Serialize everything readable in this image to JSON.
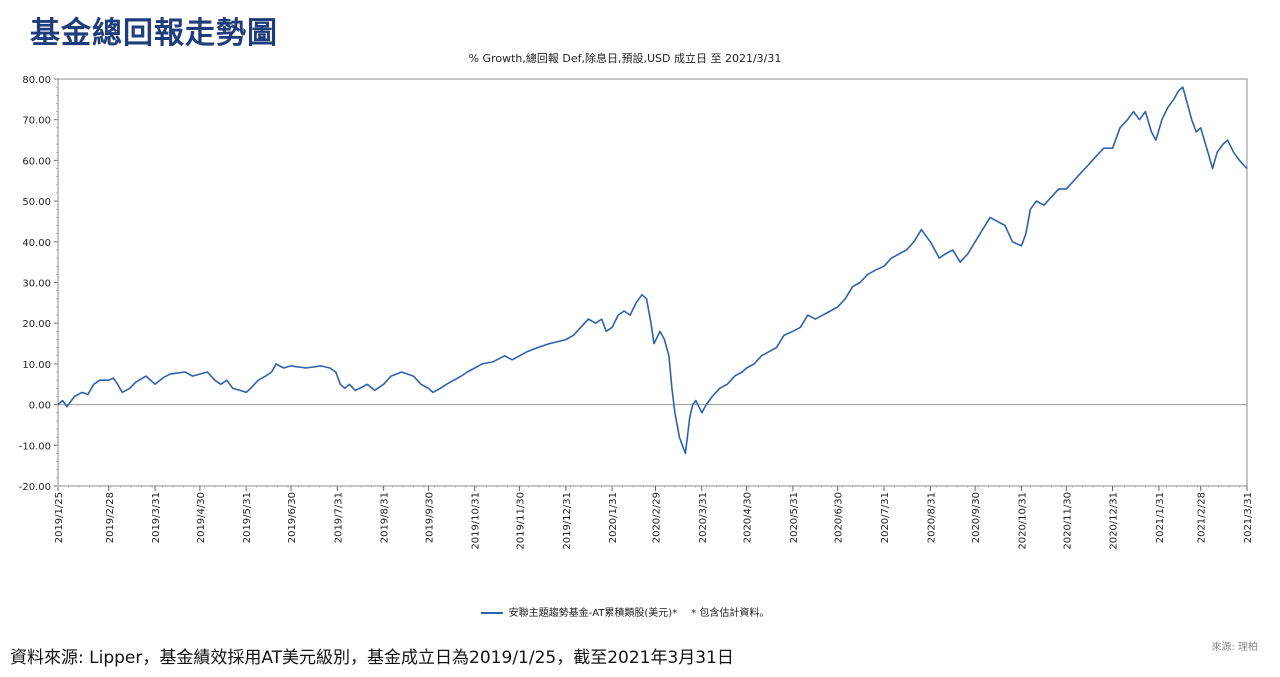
{
  "page": {
    "title": "基金總回報走勢圖",
    "source_note": "資料來源: Lipper，基金績效採用AT美元級別，基金成立日為2019/1/25，截至2021年3月31日",
    "credit": "來源: 理柏"
  },
  "colors": {
    "title": "#1f3d7a",
    "series": "#2e62ad",
    "zero_line": "#9a9a9a"
  },
  "chart_data": {
    "type": "line",
    "title": "",
    "subtitle": "% Growth,總回報 Def,除息日,預設,USD 成立日 至 2021/3/31",
    "xlabel": "",
    "ylabel": "",
    "ylim": [
      -20,
      80
    ],
    "yticks": [
      "80.00",
      "70.00",
      "60.00",
      "50.00",
      "40.00",
      "30.00",
      "20.00",
      "10.00",
      "0.00",
      "-10.00",
      "-20.00"
    ],
    "x_range": [
      "2019-01-25",
      "2021-03-31"
    ],
    "xtick_labels": [
      "2019/1/25",
      "2019/2/28",
      "2019/3/31",
      "2019/4/30",
      "2019/5/31",
      "2019/6/30",
      "2019/7/31",
      "2019/8/31",
      "2019/9/30",
      "2019/10/31",
      "2019/11/30",
      "2019/12/31",
      "2020/1/31",
      "2020/2/29",
      "2020/3/31",
      "2020/4/30",
      "2020/5/31",
      "2020/6/30",
      "2020/7/31",
      "2020/8/31",
      "2020/9/30",
      "2020/10/31",
      "2020/11/30",
      "2020/12/31",
      "2021/1/31",
      "2021/2/28",
      "2021/3/31"
    ],
    "grid": false,
    "legend_position": "bottom",
    "legend": "安聯主題趨勢基金-AT累積類股(美元)*",
    "legend_note": "* 包含估計資料。",
    "series": [
      {
        "name": "安聯主題趨勢基金-AT累積類股(美元)*",
        "points": [
          [
            "2019-01-25",
            0
          ],
          [
            "2019-01-28",
            1
          ],
          [
            "2019-01-31",
            -0.5
          ],
          [
            "2019-02-05",
            2
          ],
          [
            "2019-02-10",
            3
          ],
          [
            "2019-02-14",
            2.5
          ],
          [
            "2019-02-18",
            5
          ],
          [
            "2019-02-22",
            6
          ],
          [
            "2019-02-28",
            6
          ],
          [
            "2019-03-03",
            6.5
          ],
          [
            "2019-03-06",
            5
          ],
          [
            "2019-03-09",
            3
          ],
          [
            "2019-03-14",
            4
          ],
          [
            "2019-03-18",
            5.5
          ],
          [
            "2019-03-25",
            7
          ],
          [
            "2019-03-31",
            5
          ],
          [
            "2019-04-05",
            6.5
          ],
          [
            "2019-04-10",
            7.5
          ],
          [
            "2019-04-20",
            8
          ],
          [
            "2019-04-25",
            7
          ],
          [
            "2019-04-30",
            7.5
          ],
          [
            "2019-05-05",
            8
          ],
          [
            "2019-05-10",
            6
          ],
          [
            "2019-05-14",
            5
          ],
          [
            "2019-05-18",
            6
          ],
          [
            "2019-05-22",
            4
          ],
          [
            "2019-05-27",
            3.5
          ],
          [
            "2019-05-31",
            3
          ],
          [
            "2019-06-03",
            4
          ],
          [
            "2019-06-08",
            6
          ],
          [
            "2019-06-13",
            7
          ],
          [
            "2019-06-17",
            8
          ],
          [
            "2019-06-20",
            10
          ],
          [
            "2019-06-25",
            9
          ],
          [
            "2019-06-30",
            9.5
          ],
          [
            "2019-07-10",
            9
          ],
          [
            "2019-07-20",
            9.5
          ],
          [
            "2019-07-26",
            9
          ],
          [
            "2019-07-30",
            8
          ],
          [
            "2019-08-02",
            5
          ],
          [
            "2019-08-05",
            4
          ],
          [
            "2019-08-08",
            5
          ],
          [
            "2019-08-12",
            3.5
          ],
          [
            "2019-08-15",
            4
          ],
          [
            "2019-08-20",
            5
          ],
          [
            "2019-08-25",
            3.5
          ],
          [
            "2019-08-31",
            5
          ],
          [
            "2019-09-05",
            7
          ],
          [
            "2019-09-12",
            8
          ],
          [
            "2019-09-20",
            7
          ],
          [
            "2019-09-25",
            5
          ],
          [
            "2019-09-30",
            4
          ],
          [
            "2019-10-03",
            3
          ],
          [
            "2019-10-08",
            4
          ],
          [
            "2019-10-12",
            5
          ],
          [
            "2019-10-17",
            6
          ],
          [
            "2019-10-22",
            7
          ],
          [
            "2019-10-26",
            8
          ],
          [
            "2019-10-31",
            9
          ],
          [
            "2019-11-05",
            10
          ],
          [
            "2019-11-12",
            10.5
          ],
          [
            "2019-11-20",
            12
          ],
          [
            "2019-11-25",
            11
          ],
          [
            "2019-11-30",
            12
          ],
          [
            "2019-12-05",
            13
          ],
          [
            "2019-12-12",
            14
          ],
          [
            "2019-12-20",
            15
          ],
          [
            "2019-12-26",
            15.5
          ],
          [
            "2019-12-31",
            16
          ],
          [
            "2020-01-05",
            17
          ],
          [
            "2020-01-10",
            19
          ],
          [
            "2020-01-15",
            21
          ],
          [
            "2020-01-20",
            20
          ],
          [
            "2020-01-24",
            21
          ],
          [
            "2020-01-27",
            18
          ],
          [
            "2020-01-31",
            19
          ],
          [
            "2020-02-04",
            22
          ],
          [
            "2020-02-08",
            23
          ],
          [
            "2020-02-12",
            22
          ],
          [
            "2020-02-16",
            25
          ],
          [
            "2020-02-20",
            27
          ],
          [
            "2020-02-23",
            26
          ],
          [
            "2020-02-26",
            20
          ],
          [
            "2020-02-28",
            15
          ],
          [
            "2020-03-03",
            18
          ],
          [
            "2020-03-06",
            16
          ],
          [
            "2020-03-09",
            12
          ],
          [
            "2020-03-11",
            4
          ],
          [
            "2020-03-13",
            -2
          ],
          [
            "2020-03-16",
            -8
          ],
          [
            "2020-03-18",
            -10
          ],
          [
            "2020-03-20",
            -12
          ],
          [
            "2020-03-23",
            -3
          ],
          [
            "2020-03-25",
            0
          ],
          [
            "2020-03-27",
            1
          ],
          [
            "2020-03-31",
            -2
          ],
          [
            "2020-04-03",
            0
          ],
          [
            "2020-04-07",
            2
          ],
          [
            "2020-04-12",
            4
          ],
          [
            "2020-04-17",
            5
          ],
          [
            "2020-04-22",
            7
          ],
          [
            "2020-04-27",
            8
          ],
          [
            "2020-04-30",
            9
          ],
          [
            "2020-05-05",
            10
          ],
          [
            "2020-05-10",
            12
          ],
          [
            "2020-05-15",
            13
          ],
          [
            "2020-05-20",
            14
          ],
          [
            "2020-05-25",
            17
          ],
          [
            "2020-05-31",
            18
          ],
          [
            "2020-06-05",
            19
          ],
          [
            "2020-06-10",
            22
          ],
          [
            "2020-06-15",
            21
          ],
          [
            "2020-06-20",
            22
          ],
          [
            "2020-06-25",
            23
          ],
          [
            "2020-06-30",
            24
          ],
          [
            "2020-07-05",
            26
          ],
          [
            "2020-07-10",
            29
          ],
          [
            "2020-07-15",
            30
          ],
          [
            "2020-07-20",
            32
          ],
          [
            "2020-07-25",
            33
          ],
          [
            "2020-07-31",
            34
          ],
          [
            "2020-08-05",
            36
          ],
          [
            "2020-08-10",
            37
          ],
          [
            "2020-08-15",
            38
          ],
          [
            "2020-08-20",
            40
          ],
          [
            "2020-08-25",
            43
          ],
          [
            "2020-08-31",
            40
          ],
          [
            "2020-09-03",
            38
          ],
          [
            "2020-09-06",
            36
          ],
          [
            "2020-09-10",
            37
          ],
          [
            "2020-09-15",
            38
          ],
          [
            "2020-09-20",
            35
          ],
          [
            "2020-09-25",
            37
          ],
          [
            "2020-09-30",
            40
          ],
          [
            "2020-10-05",
            43
          ],
          [
            "2020-10-10",
            46
          ],
          [
            "2020-10-15",
            45
          ],
          [
            "2020-10-20",
            44
          ],
          [
            "2020-10-25",
            40
          ],
          [
            "2020-10-31",
            39
          ],
          [
            "2020-11-03",
            42
          ],
          [
            "2020-11-06",
            48
          ],
          [
            "2020-11-10",
            50
          ],
          [
            "2020-11-15",
            49
          ],
          [
            "2020-11-20",
            51
          ],
          [
            "2020-11-25",
            53
          ],
          [
            "2020-11-30",
            53
          ],
          [
            "2020-12-05",
            55
          ],
          [
            "2020-12-10",
            57
          ],
          [
            "2020-12-15",
            59
          ],
          [
            "2020-12-20",
            61
          ],
          [
            "2020-12-25",
            63
          ],
          [
            "2020-12-31",
            63
          ],
          [
            "2021-01-05",
            68
          ],
          [
            "2021-01-10",
            70
          ],
          [
            "2021-01-14",
            72
          ],
          [
            "2021-01-18",
            70
          ],
          [
            "2021-01-22",
            72
          ],
          [
            "2021-01-26",
            67
          ],
          [
            "2021-01-29",
            65
          ],
          [
            "2021-02-02",
            70
          ],
          [
            "2021-02-06",
            73
          ],
          [
            "2021-02-10",
            75
          ],
          [
            "2021-02-13",
            77
          ],
          [
            "2021-02-16",
            78
          ],
          [
            "2021-02-19",
            74
          ],
          [
            "2021-02-22",
            70
          ],
          [
            "2021-02-25",
            67
          ],
          [
            "2021-02-28",
            68
          ],
          [
            "2021-03-04",
            63
          ],
          [
            "2021-03-08",
            58
          ],
          [
            "2021-03-11",
            62
          ],
          [
            "2021-03-15",
            64
          ],
          [
            "2021-03-18",
            65
          ],
          [
            "2021-03-22",
            62
          ],
          [
            "2021-03-26",
            60
          ],
          [
            "2021-03-31",
            58
          ]
        ]
      }
    ]
  }
}
